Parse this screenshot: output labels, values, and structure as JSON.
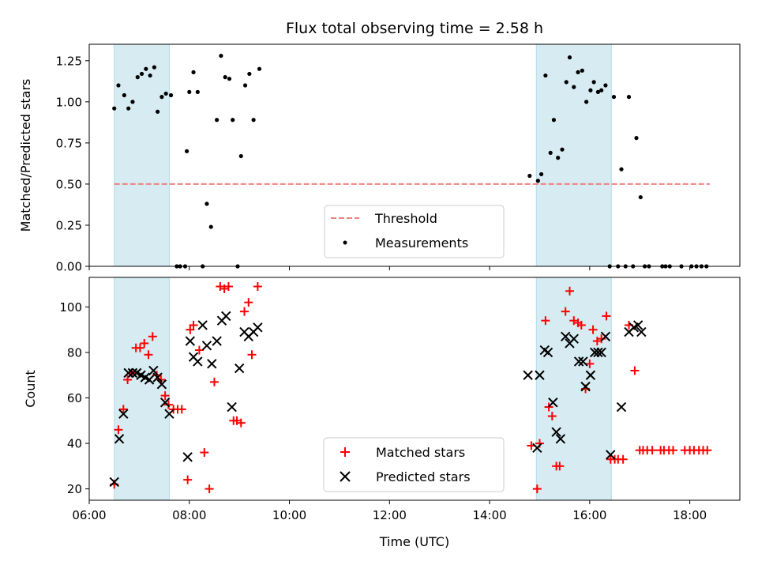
{
  "chart_data": [
    {
      "type": "scatter",
      "title": "Flux total observing time = 2.58 h",
      "xlabel": "",
      "ylabel": "Matched/Predicted stars",
      "xlim": [
        "06:00",
        "19:00"
      ],
      "ylim": [
        0,
        1.35
      ],
      "x_ticks": [
        "06:00",
        "08:00",
        "10:00",
        "12:00",
        "14:00",
        "16:00",
        "18:00"
      ],
      "y_ticks": [
        "0.00",
        "0.25",
        "0.50",
        "0.75",
        "1.00",
        "1.25"
      ],
      "shaded_intervals": [
        [
          "06:30",
          "07:36"
        ],
        [
          "14:56",
          "16:26"
        ]
      ],
      "shade_color": "#add8e6",
      "threshold": {
        "name": "Threshold",
        "value": 0.5,
        "x_range": [
          "06:30",
          "18:24"
        ],
        "color": "#f08080",
        "style": "dashed"
      },
      "legend": {
        "placement": "lower-center",
        "entries": [
          "Threshold",
          "Measurements"
        ]
      },
      "series": [
        {
          "name": "Measurements",
          "color": "#000000",
          "points": [
            [
              "06:30",
              0.96
            ],
            [
              "06:35",
              1.1
            ],
            [
              "06:42",
              1.04
            ],
            [
              "06:47",
              0.96
            ],
            [
              "06:52",
              1.0
            ],
            [
              "06:58",
              1.15
            ],
            [
              "07:03",
              1.17
            ],
            [
              "07:08",
              1.2
            ],
            [
              "07:13",
              1.16
            ],
            [
              "07:18",
              1.21
            ],
            [
              "07:22",
              0.94
            ],
            [
              "07:27",
              1.03
            ],
            [
              "07:32",
              1.05
            ],
            [
              "07:38",
              1.04
            ],
            [
              "07:45",
              0.0
            ],
            [
              "07:49",
              0.0
            ],
            [
              "07:55",
              0.0
            ],
            [
              "07:57",
              0.7
            ],
            [
              "08:00",
              1.06
            ],
            [
              "08:05",
              1.18
            ],
            [
              "08:10",
              1.06
            ],
            [
              "08:16",
              0.0
            ],
            [
              "08:21",
              0.38
            ],
            [
              "08:26",
              0.24
            ],
            [
              "08:33",
              0.89
            ],
            [
              "08:38",
              1.28
            ],
            [
              "08:43",
              1.15
            ],
            [
              "08:48",
              1.14
            ],
            [
              "08:52",
              0.89
            ],
            [
              "08:58",
              0.0
            ],
            [
              "09:02",
              0.67
            ],
            [
              "09:07",
              1.1
            ],
            [
              "09:12",
              1.17
            ],
            [
              "09:17",
              0.89
            ],
            [
              "09:24",
              1.2
            ],
            [
              "14:48",
              0.55
            ],
            [
              "14:58",
              0.52
            ],
            [
              "15:02",
              0.56
            ],
            [
              "15:07",
              1.16
            ],
            [
              "15:13",
              0.69
            ],
            [
              "15:17",
              0.89
            ],
            [
              "15:22",
              0.66
            ],
            [
              "15:27",
              0.71
            ],
            [
              "15:32",
              1.12
            ],
            [
              "15:36",
              1.27
            ],
            [
              "15:41",
              1.09
            ],
            [
              "15:46",
              1.18
            ],
            [
              "15:51",
              1.19
            ],
            [
              "15:56",
              1.0
            ],
            [
              "16:01",
              1.07
            ],
            [
              "16:05",
              1.12
            ],
            [
              "16:10",
              1.06
            ],
            [
              "16:14",
              1.07
            ],
            [
              "16:19",
              1.1
            ],
            [
              "16:24",
              0.0
            ],
            [
              "16:29",
              1.03
            ],
            [
              "16:34",
              0.0
            ],
            [
              "16:38",
              0.59
            ],
            [
              "16:43",
              0.0
            ],
            [
              "16:47",
              1.03
            ],
            [
              "16:52",
              0.0
            ],
            [
              "16:56",
              0.78
            ],
            [
              "17:01",
              0.42
            ],
            [
              "17:06",
              0.0
            ],
            [
              "17:11",
              0.0
            ],
            [
              "17:27",
              0.0
            ],
            [
              "17:31",
              0.0
            ],
            [
              "17:36",
              0.0
            ],
            [
              "17:50",
              0.0
            ],
            [
              "18:02",
              0.0
            ],
            [
              "18:08",
              0.0
            ],
            [
              "18:14",
              0.0
            ],
            [
              "18:20",
              0.0
            ]
          ]
        }
      ]
    },
    {
      "type": "scatter",
      "title": "",
      "xlabel": "Time (UTC)",
      "ylabel": "Count",
      "xlim": [
        "06:00",
        "19:00"
      ],
      "ylim": [
        15,
        113
      ],
      "x_ticks": [
        "06:00",
        "08:00",
        "10:00",
        "12:00",
        "14:00",
        "16:00",
        "18:00"
      ],
      "y_ticks": [
        "20",
        "40",
        "60",
        "80",
        "100"
      ],
      "shaded_intervals": [
        [
          "06:30",
          "07:36"
        ],
        [
          "14:56",
          "16:26"
        ]
      ],
      "shade_color": "#add8e6",
      "legend": {
        "placement": "lower-center",
        "entries": [
          "Matched stars",
          "Predicted stars"
        ]
      },
      "series": [
        {
          "name": "Matched stars",
          "marker": "plus",
          "color": "#ff0000",
          "points": [
            [
              "06:30",
              22
            ],
            [
              "06:35",
              46
            ],
            [
              "06:41",
              55
            ],
            [
              "06:46",
              68
            ],
            [
              "06:51",
              71
            ],
            [
              "06:56",
              82
            ],
            [
              "07:01",
              82
            ],
            [
              "07:06",
              84
            ],
            [
              "07:11",
              79
            ],
            [
              "07:16",
              87
            ],
            [
              "07:21",
              70
            ],
            [
              "07:26",
              68
            ],
            [
              "07:31",
              61
            ],
            [
              "07:35",
              57
            ],
            [
              "07:41",
              55
            ],
            [
              "07:46",
              55
            ],
            [
              "07:51",
              55
            ],
            [
              "07:58",
              24
            ],
            [
              "08:01",
              90
            ],
            [
              "08:05",
              92
            ],
            [
              "08:12",
              81
            ],
            [
              "08:18",
              36
            ],
            [
              "08:24",
              20
            ],
            [
              "08:30",
              67
            ],
            [
              "08:37",
              109
            ],
            [
              "08:42",
              108
            ],
            [
              "08:47",
              109
            ],
            [
              "08:53",
              50
            ],
            [
              "08:57",
              50
            ],
            [
              "09:02",
              49
            ],
            [
              "09:06",
              98
            ],
            [
              "09:11",
              102
            ],
            [
              "09:15",
              79
            ],
            [
              "09:22",
              109
            ],
            [
              "14:50",
              39
            ],
            [
              "14:57",
              20
            ],
            [
              "15:00",
              40
            ],
            [
              "15:07",
              94
            ],
            [
              "15:11",
              56
            ],
            [
              "15:15",
              52
            ],
            [
              "15:20",
              30
            ],
            [
              "15:24",
              30
            ],
            [
              "15:31",
              98
            ],
            [
              "15:36",
              107
            ],
            [
              "15:41",
              94
            ],
            [
              "15:46",
              93
            ],
            [
              "15:50",
              92
            ],
            [
              "15:55",
              64
            ],
            [
              "16:00",
              75
            ],
            [
              "16:04",
              90
            ],
            [
              "16:09",
              85
            ],
            [
              "16:14",
              86
            ],
            [
              "16:20",
              96
            ],
            [
              "16:25",
              33
            ],
            [
              "16:30",
              33
            ],
            [
              "16:34",
              33
            ],
            [
              "16:40",
              33
            ],
            [
              "16:47",
              92
            ],
            [
              "16:54",
              72
            ],
            [
              "17:00",
              37
            ],
            [
              "17:04",
              37
            ],
            [
              "17:09",
              37
            ],
            [
              "17:15",
              37
            ],
            [
              "17:25",
              37
            ],
            [
              "17:29",
              37
            ],
            [
              "17:35",
              37
            ],
            [
              "17:40",
              37
            ],
            [
              "17:54",
              37
            ],
            [
              "18:00",
              37
            ],
            [
              "18:05",
              37
            ],
            [
              "18:11",
              37
            ],
            [
              "18:16",
              37
            ],
            [
              "18:21",
              37
            ]
          ]
        },
        {
          "name": "Predicted stars",
          "marker": "x",
          "color": "#000000",
          "points": [
            [
              "06:30",
              23
            ],
            [
              "06:36",
              42
            ],
            [
              "06:41",
              53
            ],
            [
              "06:47",
              71
            ],
            [
              "06:52",
              71
            ],
            [
              "06:57",
              71
            ],
            [
              "07:02",
              70
            ],
            [
              "07:07",
              69
            ],
            [
              "07:12",
              68
            ],
            [
              "07:17",
              72
            ],
            [
              "07:22",
              69
            ],
            [
              "07:27",
              66
            ],
            [
              "07:31",
              58
            ],
            [
              "07:36",
              53
            ],
            [
              "07:58",
              34
            ],
            [
              "08:01",
              85
            ],
            [
              "08:05",
              78
            ],
            [
              "08:10",
              76
            ],
            [
              "08:16",
              92
            ],
            [
              "08:21",
              83
            ],
            [
              "08:27",
              75
            ],
            [
              "08:33",
              85
            ],
            [
              "08:39",
              94
            ],
            [
              "08:44",
              96
            ],
            [
              "08:51",
              56
            ],
            [
              "09:00",
              73
            ],
            [
              "09:06",
              89
            ],
            [
              "09:11",
              87
            ],
            [
              "09:17",
              89
            ],
            [
              "09:22",
              91
            ],
            [
              "14:46",
              70
            ],
            [
              "14:57",
              38
            ],
            [
              "15:00",
              70
            ],
            [
              "15:06",
              81
            ],
            [
              "15:10",
              80
            ],
            [
              "15:16",
              58
            ],
            [
              "15:20",
              45
            ],
            [
              "15:25",
              42
            ],
            [
              "15:31",
              87
            ],
            [
              "15:36",
              84
            ],
            [
              "15:41",
              86
            ],
            [
              "15:47",
              76
            ],
            [
              "15:52",
              76
            ],
            [
              "15:55",
              65
            ],
            [
              "16:01",
              70
            ],
            [
              "16:06",
              80
            ],
            [
              "16:10",
              80
            ],
            [
              "16:14",
              80
            ],
            [
              "16:19",
              87
            ],
            [
              "16:25",
              35
            ],
            [
              "16:38",
              56
            ],
            [
              "16:47",
              89
            ],
            [
              "16:53",
              91
            ],
            [
              "16:58",
              92
            ],
            [
              "17:02",
              89
            ]
          ]
        }
      ]
    }
  ]
}
